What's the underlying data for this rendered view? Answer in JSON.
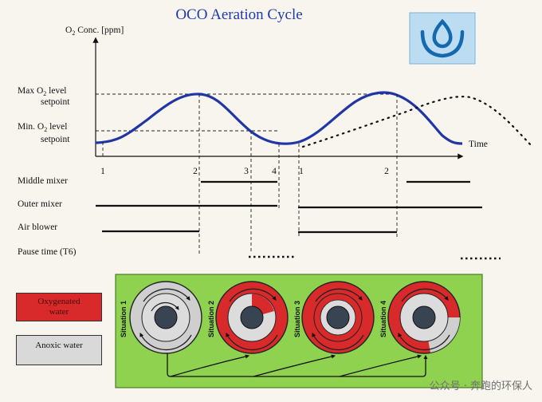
{
  "title": "OCO Aeration Cycle",
  "y_axis_label_parts": [
    "O",
    "2",
    " Conc. [ppm]"
  ],
  "x_axis_label": "Time",
  "setpoints": {
    "max": {
      "line1_parts": [
        "Max O",
        "2",
        " level"
      ],
      "line2": "setpoint"
    },
    "min": {
      "line1_parts": [
        "Min. O",
        "2",
        " level"
      ],
      "line2": "setpoint"
    }
  },
  "phase_markers": [
    "1",
    "2",
    "3",
    "4",
    "1",
    "2"
  ],
  "equipment_rows": [
    "Middle mixer",
    "Outer mixer",
    "Air blower",
    "Pause time (T6)"
  ],
  "legend": {
    "oxygenated": {
      "line1": "Oxygenated",
      "line2": "water",
      "color": "#d82a2a"
    },
    "anoxic": {
      "label": "Anoxic water",
      "color": "#d9d9d9"
    }
  },
  "situations": [
    "Situation 1",
    "Situation 2",
    "Situation 3",
    "Situation 4"
  ],
  "colors": {
    "curve": "#2136a6",
    "panel": "#8ed24f",
    "title": "#1f3aa8",
    "logo_bg": "#bcdcf2",
    "logo_fg": "#1468b0"
  },
  "watermark": "公众号 · 奔跑的环保人",
  "logo_icon": "drop-in-bowl-icon"
}
